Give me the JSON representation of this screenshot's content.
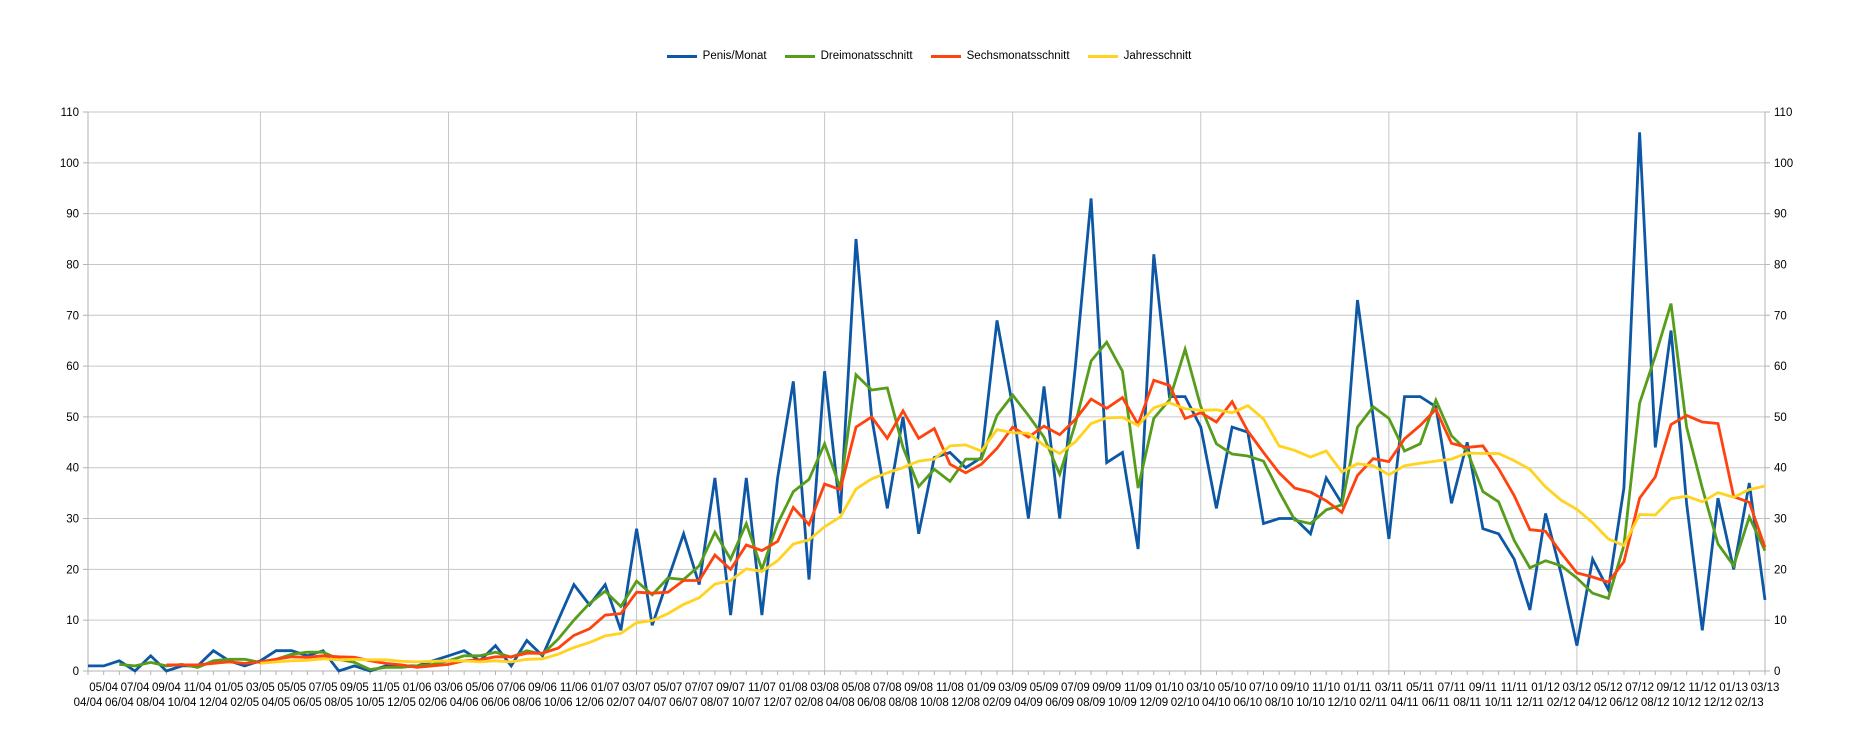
{
  "chart_data": {
    "type": "line",
    "title": "",
    "xlabel": "",
    "ylabel": "",
    "ylim": [
      0,
      110
    ],
    "y_ticks": [
      0,
      10,
      20,
      30,
      40,
      50,
      60,
      70,
      80,
      90,
      100,
      110
    ],
    "grid": {
      "horizontal": true,
      "vertical_every_12_from_index": 11
    },
    "x_grid_indices": [
      11,
      23,
      35,
      47,
      59,
      71,
      83,
      95,
      107
    ],
    "legend_position": "top-center",
    "axis_color": "#b3b3b3",
    "gridline_color": "#c6c6c6",
    "x_labels": [
      "04/04",
      "05/04",
      "06/04",
      "07/04",
      "08/04",
      "09/04",
      "10/04",
      "11/04",
      "12/04",
      "01/05",
      "02/05",
      "03/05",
      "04/05",
      "05/05",
      "06/05",
      "07/05",
      "08/05",
      "09/05",
      "10/05",
      "11/05",
      "12/05",
      "01/06",
      "02/06",
      "03/06",
      "04/06",
      "05/06",
      "06/06",
      "07/06",
      "08/06",
      "09/06",
      "10/06",
      "11/06",
      "12/06",
      "01/07",
      "02/07",
      "03/07",
      "04/07",
      "05/07",
      "06/07",
      "07/07",
      "08/07",
      "09/07",
      "10/07",
      "11/07",
      "12/07",
      "01/08",
      "02/08",
      "03/08",
      "04/08",
      "05/08",
      "06/08",
      "07/08",
      "08/08",
      "09/08",
      "10/08",
      "11/08",
      "12/08",
      "01/09",
      "02/09",
      "03/09",
      "04/09",
      "05/09",
      "06/09",
      "07/09",
      "08/09",
      "09/09",
      "10/09",
      "11/09",
      "12/09",
      "01/10",
      "02/10",
      "03/10",
      "04/10",
      "05/10",
      "06/10",
      "07/10",
      "08/10",
      "09/10",
      "10/10",
      "11/10",
      "12/10",
      "01/11",
      "02/11",
      "03/11",
      "04/11",
      "05/11",
      "06/11",
      "07/11",
      "08/11",
      "09/11",
      "10/11",
      "11/11",
      "12/11",
      "01/12",
      "02/12",
      "03/12",
      "04/12",
      "05/12",
      "06/12",
      "07/12",
      "08/12",
      "09/12",
      "10/12",
      "11/12",
      "12/12",
      "01/13",
      "02/13",
      "03/13"
    ],
    "series": [
      {
        "name": "Penis/Monat",
        "color": "#0d57a5",
        "start_index": 0,
        "values": [
          1,
          1,
          2,
          0,
          3,
          0,
          1,
          1,
          4,
          2,
          1,
          2,
          4,
          4,
          3,
          4,
          0,
          1,
          0,
          1,
          1,
          1,
          2,
          3,
          4,
          2,
          5,
          1,
          6,
          3,
          10,
          17,
          13,
          17,
          8,
          28,
          9,
          18,
          27,
          17,
          38,
          11,
          38,
          11,
          38,
          57,
          18,
          59,
          31,
          85,
          50,
          32,
          50,
          27,
          42,
          43,
          40,
          42,
          69,
          52,
          30,
          56,
          30,
          60,
          93,
          41,
          43,
          24,
          82,
          54,
          54,
          48,
          32,
          48,
          47,
          29,
          30,
          30,
          27,
          38,
          33,
          73,
          50,
          26,
          54,
          54,
          52,
          33,
          45,
          28,
          27,
          22,
          12,
          31,
          19,
          5,
          22,
          16,
          36,
          106,
          44,
          67,
          33,
          8,
          34,
          20,
          37,
          14
        ]
      },
      {
        "name": "Dreimonatsschnitt",
        "color": "#579d1c",
        "start_index": 2,
        "values": [
          1.3,
          1,
          1.7,
          1,
          1.3,
          0.7,
          2,
          2.3,
          2.3,
          1.7,
          2.3,
          3.3,
          3.7,
          3.7,
          2.3,
          1.7,
          0.3,
          0.7,
          0.7,
          1,
          1.3,
          2,
          3,
          3,
          3.7,
          2.7,
          4,
          3.3,
          6.3,
          10,
          13.3,
          15.7,
          12.7,
          17.7,
          15,
          18.3,
          18,
          20.7,
          27.3,
          22,
          29,
          20,
          29,
          35.3,
          37.7,
          44.7,
          36,
          58.3,
          55.3,
          55.7,
          44,
          36.3,
          39.7,
          37.3,
          41.7,
          41.7,
          50.3,
          54.3,
          50.3,
          46,
          38.7,
          48.7,
          61,
          64.7,
          59,
          36,
          49.7,
          53.3,
          63.3,
          52,
          44.7,
          42.7,
          42.3,
          41.3,
          35.3,
          29.7,
          29,
          31.7,
          32.7,
          48,
          52,
          49.7,
          43.3,
          44.7,
          53.3,
          46.3,
          43.3,
          35.3,
          33.3,
          25.7,
          20.3,
          21.7,
          20.7,
          18.3,
          15.3,
          14.3,
          24.7,
          52.7,
          62,
          72.3,
          48,
          36,
          25,
          20.7,
          30.3,
          23.7
        ]
      },
      {
        "name": "Sechsmonatsschnitt",
        "color": "#ff420e",
        "start_index": 5,
        "values": [
          1.2,
          1.2,
          1.2,
          1.5,
          1.8,
          1.5,
          1.8,
          2.3,
          2.8,
          2.7,
          3,
          2.8,
          2.7,
          2,
          1.5,
          1.2,
          0.7,
          1,
          1.3,
          2,
          2.2,
          2.8,
          2.8,
          3.5,
          3.5,
          4.5,
          7,
          8.3,
          11,
          11.3,
          15.5,
          15.3,
          15.5,
          17.8,
          17.8,
          22.8,
          20,
          24.8,
          23.7,
          25.5,
          32.2,
          28.8,
          36.8,
          35.7,
          48,
          50,
          45.8,
          51.2,
          45.8,
          47.7,
          40.7,
          39,
          40.7,
          43.8,
          48,
          46,
          48.2,
          46.5,
          49.5,
          53.5,
          51.7,
          53.8,
          48.5,
          57.2,
          56.2,
          49.7,
          50.8,
          49,
          53,
          47.2,
          43,
          39,
          36,
          35.2,
          33.5,
          31.2,
          38.5,
          41.8,
          41.2,
          45.7,
          48.3,
          51.5,
          44.8,
          44,
          44.3,
          39.8,
          34.5,
          27.8,
          27.5,
          23.2,
          19.3,
          18.5,
          17.5,
          21.5,
          34,
          38.2,
          48.5,
          50.3,
          49,
          48.7,
          34.3,
          33.2,
          24.3
        ]
      },
      {
        "name": "Jahresschnitt",
        "color": "#ffd320",
        "start_index": 11,
        "values": [
          1.5,
          1.8,
          2,
          2.1,
          2.4,
          2.2,
          2.3,
          2.2,
          2.2,
          1.9,
          1.8,
          1.9,
          2,
          2,
          1.8,
          2,
          1.8,
          2.3,
          2.4,
          3.3,
          4.6,
          5.6,
          6.9,
          7.4,
          9.5,
          9.9,
          11.3,
          13.1,
          14.4,
          17.1,
          17.8,
          20.1,
          19.6,
          21.7,
          25,
          25.8,
          28.4,
          30.3,
          35.8,
          37.8,
          39,
          40,
          41.3,
          41.7,
          44.3,
          44.5,
          43.3,
          47.5,
          46.9,
          46.8,
          44.4,
          42.8,
          45.1,
          48.7,
          49.8,
          49.9,
          48.3,
          51.8,
          52.8,
          51.6,
          51.3,
          51.4,
          50.8,
          52.2,
          49.6,
          44.3,
          43.4,
          42.1,
          43.3,
          39.2,
          40.8,
          40.4,
          38.6,
          40.4,
          40.9,
          41.3,
          41.7,
          42.9,
          42.8,
          42.8,
          41.4,
          39.7,
          36.2,
          33.6,
          31.8,
          29.2,
          26,
          24.7,
          30.8,
          30.7,
          33.9,
          34.4,
          33.3,
          35.1,
          34.2,
          35.7,
          36.4
        ]
      }
    ]
  }
}
